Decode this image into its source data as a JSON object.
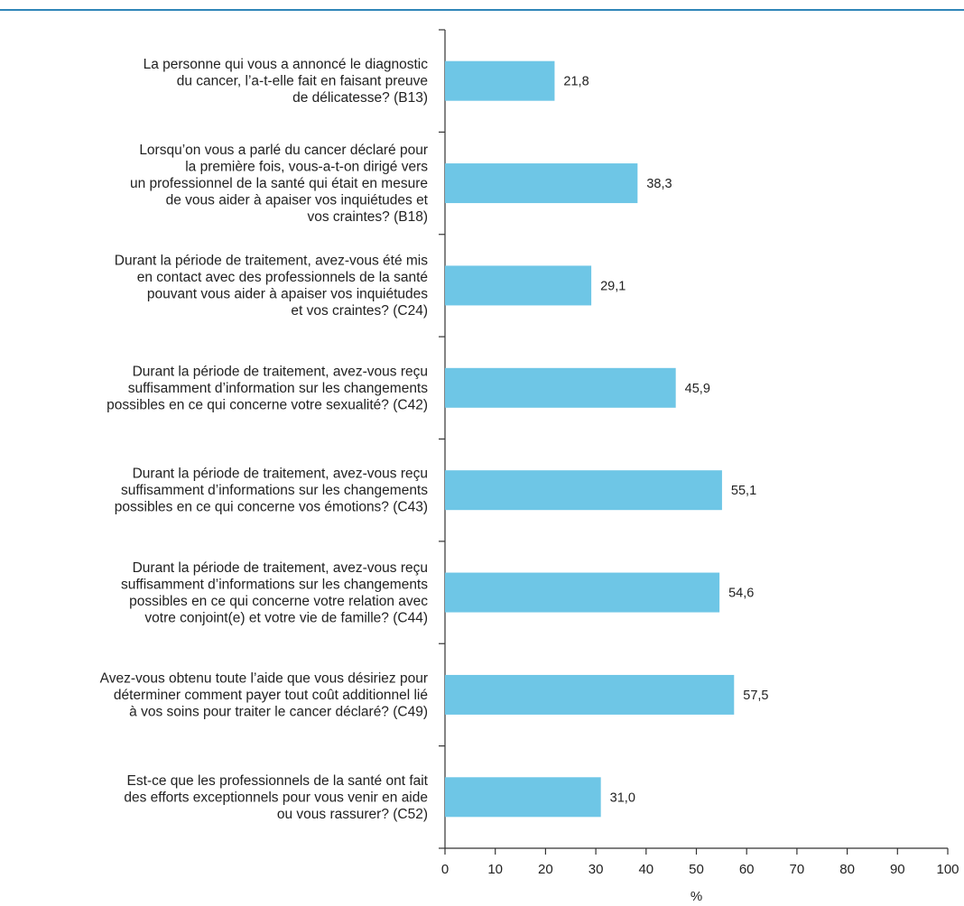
{
  "chart_data": {
    "type": "bar",
    "orientation": "horizontal",
    "categories": [
      [
        "La personne qui vous a annoncé le diagnostic",
        "du cancer, l’a-t-elle fait en faisant preuve",
        "de délicatesse? (B13)"
      ],
      [
        "Lorsqu’on vous a parlé du cancer déclaré pour",
        "la première fois, vous-a-t-on dirigé vers",
        "un professionnel de la santé qui était en mesure",
        "de vous aider à apaiser vos inquiétudes et",
        "vos craintes? (B18)"
      ],
      [
        "Durant la période de traitement, avez-vous été mis",
        "en contact avec des professionnels de la santé",
        "pouvant vous aider à apaiser vos inquiétudes",
        "et vos craintes? (C24)"
      ],
      [
        "Durant la période de traitement, avez-vous reçu",
        "suffisamment d’information sur les changements",
        "possibles en ce qui concerne votre sexualité? (C42)"
      ],
      [
        "Durant la période de traitement, avez-vous reçu",
        "suffisamment d’informations sur les changements",
        "possibles en ce qui concerne vos émotions? (C43)"
      ],
      [
        "Durant la période de traitement, avez-vous reçu",
        "suffisamment d’informations sur les changements",
        "possibles en ce qui concerne votre relation avec",
        "votre conjoint(e) et votre vie de famille? (C44)"
      ],
      [
        "Avez-vous obtenu toute l’aide que vous désiriez pour",
        "déterminer comment payer tout coût additionnel lié",
        "à vos soins pour traiter le cancer déclaré? (C49)"
      ],
      [
        "Est-ce que les professionnels de la santé ont fait",
        "des efforts exceptionnels pour vous venir en aide",
        "ou vous rassurer? (C52)"
      ]
    ],
    "values": [
      21.8,
      38.3,
      29.1,
      45.9,
      55.1,
      54.6,
      57.5,
      31.0
    ],
    "value_labels": [
      "21,8",
      "38,3",
      "29,1",
      "45,9",
      "55,1",
      "54,6",
      "57,5",
      "31,0"
    ],
    "xlim": [
      0,
      100
    ],
    "xticks": [
      "0",
      "10",
      "20",
      "30",
      "40",
      "50",
      "60",
      "70",
      "80",
      "90",
      "100"
    ],
    "xlabel": "%",
    "grid": false,
    "colors": {
      "bar": "#6ec6e6",
      "top_rule": "#2f86b8",
      "axis": "#333333"
    }
  }
}
